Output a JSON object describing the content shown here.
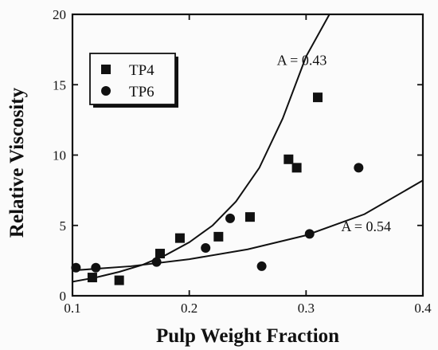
{
  "chart_data": {
    "type": "scatter",
    "title": "",
    "xlabel": "Pulp Weight Fraction",
    "ylabel": "Relative Viscosity",
    "xlim": [
      0.1,
      0.4
    ],
    "ylim": [
      0,
      20
    ],
    "xticks": [
      0.1,
      0.2,
      0.3,
      0.4
    ],
    "yticks": [
      0,
      5,
      10,
      15,
      20
    ],
    "xtick_labels": [
      "0.1",
      "0.2",
      "0.3",
      "0.4"
    ],
    "ytick_labels": [
      "0",
      "5",
      "10",
      "15",
      "20"
    ],
    "grid": false,
    "legend": {
      "placement": "top-left",
      "entries": [
        {
          "label": "TP4",
          "marker": "square"
        },
        {
          "label": "TP6",
          "marker": "circle"
        }
      ]
    },
    "series": [
      {
        "name": "TP4",
        "marker": "square",
        "x": [
          0.117,
          0.14,
          0.175,
          0.192,
          0.225,
          0.252,
          0.285,
          0.292,
          0.31
        ],
        "y": [
          1.3,
          1.1,
          3.0,
          4.1,
          4.2,
          5.6,
          9.7,
          9.1,
          14.1
        ]
      },
      {
        "name": "TP6",
        "marker": "circle",
        "x": [
          0.103,
          0.12,
          0.172,
          0.214,
          0.235,
          0.262,
          0.303,
          0.345
        ],
        "y": [
          2.0,
          2.0,
          2.4,
          3.4,
          5.5,
          2.1,
          4.4,
          9.1
        ]
      }
    ],
    "fit_curves": [
      {
        "for_series": "TP4",
        "x": [
          0.1,
          0.12,
          0.14,
          0.16,
          0.18,
          0.2,
          0.22,
          0.24,
          0.26,
          0.28,
          0.3,
          0.32
        ],
        "y": [
          1.0,
          1.3,
          1.7,
          2.2,
          2.9,
          3.8,
          5.0,
          6.7,
          9.1,
          12.6,
          17.0,
          20.0
        ]
      },
      {
        "for_series": "TP6",
        "x": [
          0.1,
          0.15,
          0.2,
          0.25,
          0.3,
          0.35,
          0.4
        ],
        "y": [
          1.8,
          2.1,
          2.6,
          3.3,
          4.3,
          5.8,
          8.2
        ]
      }
    ],
    "annotations": [
      {
        "text": "A = 0.43",
        "x": 0.275,
        "y": 16.4
      },
      {
        "text": "A = 0.54",
        "x": 0.33,
        "y": 4.6
      }
    ]
  }
}
